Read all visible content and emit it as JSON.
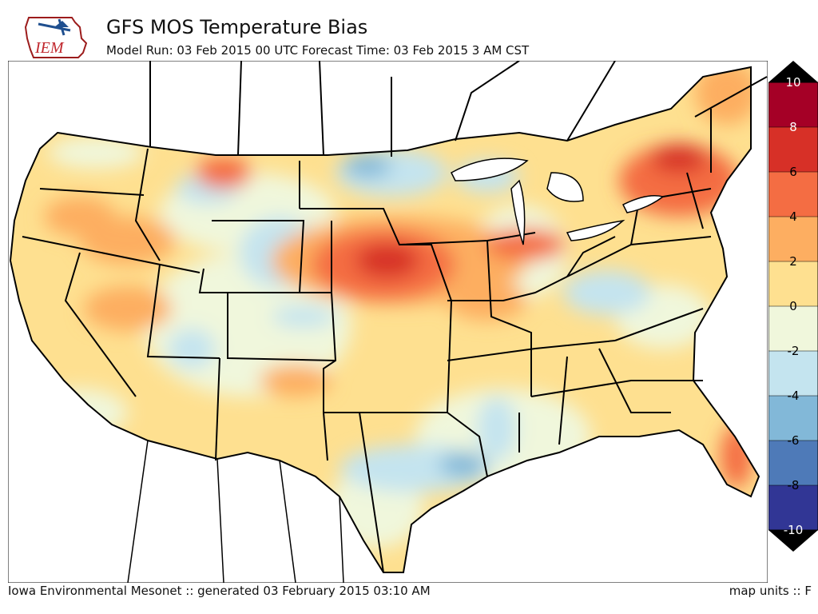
{
  "header": {
    "logo_text": "IEM",
    "title": "GFS MOS Temperature Bias",
    "subtitle": "Model Run: 03 Feb 2015 00 UTC Forecast Time: 03 Feb 2015 3 AM CST"
  },
  "footer": {
    "left": "Iowa Environmental Mesonet :: generated 03 February 2015 03:10 AM",
    "right": "map units :: F"
  },
  "colorbar": {
    "ticks": [
      "10",
      "8",
      "6",
      "4",
      "2",
      "0",
      "-2",
      "-4",
      "-6",
      "-8",
      "-10"
    ],
    "colors": [
      "#a50026",
      "#d73027",
      "#f46d43",
      "#fdae61",
      "#fee090",
      "#f0f7dc",
      "#c4e4ef",
      "#82b8d8",
      "#4e7ab8",
      "#313695"
    ],
    "over_color": "#000000",
    "under_color": "#000000"
  }
}
